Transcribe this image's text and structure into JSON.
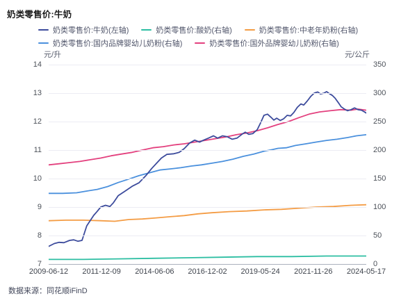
{
  "title": "奶类零售价:牛奶",
  "footer": {
    "source": "数据来源：同花顺iFinD"
  },
  "chart_data": {
    "type": "line",
    "title": "奶类零售价:牛奶",
    "grid": "horizontal-only",
    "legend_position": "top",
    "left_axis": {
      "unit": "元/升",
      "min": 7,
      "max": 14,
      "ticks": [
        14,
        13,
        12,
        11,
        10,
        9,
        8,
        7
      ]
    },
    "right_axis": {
      "unit": "元/公斤",
      "min": 0,
      "max": 350,
      "ticks": [
        350,
        300,
        250,
        200,
        150,
        100,
        50,
        0
      ]
    },
    "x_ticklabels": [
      "2009-06-12",
      "2011-12-09",
      "2014-06-06",
      "2016-12-02",
      "2019-05-24",
      "2021-11-26",
      "2024-05-17"
    ],
    "series": [
      {
        "name": "奶类零售价:牛奶(左轴)",
        "axis": "left",
        "color": "#3C4B9C",
        "points": [
          [
            0.0,
            7.62
          ],
          [
            0.018,
            7.72
          ],
          [
            0.033,
            7.76
          ],
          [
            0.048,
            7.75
          ],
          [
            0.066,
            7.83
          ],
          [
            0.079,
            7.85
          ],
          [
            0.092,
            7.8
          ],
          [
            0.105,
            7.83
          ],
          [
            0.12,
            8.34
          ],
          [
            0.142,
            8.71
          ],
          [
            0.153,
            8.85
          ],
          [
            0.164,
            9.0
          ],
          [
            0.179,
            9.06
          ],
          [
            0.193,
            9.02
          ],
          [
            0.204,
            9.15
          ],
          [
            0.219,
            9.4
          ],
          [
            0.241,
            9.56
          ],
          [
            0.263,
            9.73
          ],
          [
            0.284,
            9.85
          ],
          [
            0.306,
            10.1
          ],
          [
            0.324,
            10.35
          ],
          [
            0.341,
            10.55
          ],
          [
            0.355,
            10.72
          ],
          [
            0.372,
            10.85
          ],
          [
            0.394,
            10.87
          ],
          [
            0.411,
            10.92
          ],
          [
            0.427,
            11.05
          ],
          [
            0.444,
            11.25
          ],
          [
            0.46,
            11.35
          ],
          [
            0.475,
            11.28
          ],
          [
            0.488,
            11.35
          ],
          [
            0.503,
            11.42
          ],
          [
            0.519,
            11.5
          ],
          [
            0.532,
            11.42
          ],
          [
            0.547,
            11.5
          ],
          [
            0.562,
            11.47
          ],
          [
            0.578,
            11.38
          ],
          [
            0.593,
            11.42
          ],
          [
            0.608,
            11.55
          ],
          [
            0.619,
            11.63
          ],
          [
            0.63,
            11.55
          ],
          [
            0.643,
            11.58
          ],
          [
            0.657,
            11.72
          ],
          [
            0.667,
            11.95
          ],
          [
            0.678,
            12.22
          ],
          [
            0.689,
            12.26
          ],
          [
            0.7,
            12.15
          ],
          [
            0.709,
            12.05
          ],
          [
            0.718,
            12.12
          ],
          [
            0.729,
            12.04
          ],
          [
            0.74,
            12.1
          ],
          [
            0.751,
            12.22
          ],
          [
            0.762,
            12.2
          ],
          [
            0.772,
            12.32
          ],
          [
            0.783,
            12.5
          ],
          [
            0.794,
            12.62
          ],
          [
            0.803,
            12.58
          ],
          [
            0.814,
            12.72
          ],
          [
            0.825,
            12.88
          ],
          [
            0.836,
            13.0
          ],
          [
            0.847,
            13.04
          ],
          [
            0.856,
            12.97
          ],
          [
            0.867,
            13.0
          ],
          [
            0.875,
            13.05
          ],
          [
            0.884,
            12.98
          ],
          [
            0.893,
            12.92
          ],
          [
            0.902,
            12.82
          ],
          [
            0.913,
            12.65
          ],
          [
            0.921,
            12.52
          ],
          [
            0.93,
            12.45
          ],
          [
            0.941,
            12.38
          ],
          [
            0.952,
            12.42
          ],
          [
            0.963,
            12.48
          ],
          [
            0.974,
            12.42
          ],
          [
            0.985,
            12.4
          ],
          [
            0.993,
            12.35
          ],
          [
            1.0,
            12.3
          ]
        ]
      },
      {
        "name": "奶类零售价:酸奶(右轴)",
        "axis": "right",
        "color": "#2CBEA2",
        "points": [
          [
            0.0,
            8
          ],
          [
            0.109,
            8
          ],
          [
            0.219,
            9
          ],
          [
            0.328,
            10
          ],
          [
            0.438,
            11
          ],
          [
            0.547,
            12
          ],
          [
            0.657,
            13
          ],
          [
            0.766,
            13
          ],
          [
            0.875,
            14
          ],
          [
            1.0,
            14
          ]
        ]
      },
      {
        "name": "奶类零售价:中老年奶粉(右轴)",
        "axis": "right",
        "color": "#F49C44",
        "points": [
          [
            0.0,
            76
          ],
          [
            0.055,
            77
          ],
          [
            0.109,
            77
          ],
          [
            0.164,
            76
          ],
          [
            0.208,
            75
          ],
          [
            0.252,
            78
          ],
          [
            0.295,
            79
          ],
          [
            0.339,
            81
          ],
          [
            0.383,
            83
          ],
          [
            0.427,
            85
          ],
          [
            0.47,
            88
          ],
          [
            0.514,
            90
          ],
          [
            0.569,
            92
          ],
          [
            0.624,
            93
          ],
          [
            0.678,
            95
          ],
          [
            0.733,
            96
          ],
          [
            0.788,
            98
          ],
          [
            0.842,
            100
          ],
          [
            0.897,
            101
          ],
          [
            0.952,
            103
          ],
          [
            1.0,
            104
          ]
        ]
      },
      {
        "name": "奶类零售价:国内品牌婴幼儿奶粉(右轴)",
        "axis": "right",
        "color": "#4A90DD",
        "points": [
          [
            0.0,
            124
          ],
          [
            0.044,
            124
          ],
          [
            0.088,
            125
          ],
          [
            0.12,
            128
          ],
          [
            0.153,
            131
          ],
          [
            0.186,
            136
          ],
          [
            0.219,
            143
          ],
          [
            0.252,
            149
          ],
          [
            0.284,
            155
          ],
          [
            0.317,
            160
          ],
          [
            0.35,
            165
          ],
          [
            0.383,
            167
          ],
          [
            0.416,
            169
          ],
          [
            0.449,
            172
          ],
          [
            0.481,
            174
          ],
          [
            0.514,
            177
          ],
          [
            0.547,
            180
          ],
          [
            0.58,
            184
          ],
          [
            0.613,
            189
          ],
          [
            0.646,
            193
          ],
          [
            0.678,
            198
          ],
          [
            0.705,
            201
          ],
          [
            0.722,
            203
          ],
          [
            0.748,
            204
          ],
          [
            0.777,
            208
          ],
          [
            0.81,
            211
          ],
          [
            0.842,
            214
          ],
          [
            0.875,
            217
          ],
          [
            0.908,
            219
          ],
          [
            0.941,
            222
          ],
          [
            0.969,
            225
          ],
          [
            1.0,
            227
          ]
        ]
      },
      {
        "name": "奶类零售价:国外品牌婴幼儿奶粉(右轴)",
        "axis": "right",
        "color": "#E3407E",
        "points": [
          [
            0.0,
            174
          ],
          [
            0.033,
            176
          ],
          [
            0.066,
            178
          ],
          [
            0.098,
            180
          ],
          [
            0.131,
            183
          ],
          [
            0.164,
            186
          ],
          [
            0.197,
            190
          ],
          [
            0.23,
            193
          ],
          [
            0.263,
            196
          ],
          [
            0.295,
            200
          ],
          [
            0.328,
            204
          ],
          [
            0.361,
            206
          ],
          [
            0.394,
            209
          ],
          [
            0.427,
            211
          ],
          [
            0.46,
            214
          ],
          [
            0.492,
            217
          ],
          [
            0.525,
            220
          ],
          [
            0.558,
            223
          ],
          [
            0.591,
            227
          ],
          [
            0.624,
            230
          ],
          [
            0.657,
            234
          ],
          [
            0.689,
            239
          ],
          [
            0.722,
            245
          ],
          [
            0.755,
            250
          ],
          [
            0.788,
            257
          ],
          [
            0.82,
            263
          ],
          [
            0.853,
            267
          ],
          [
            0.886,
            269
          ],
          [
            0.919,
            271
          ],
          [
            0.952,
            270
          ],
          [
            0.974,
            272
          ],
          [
            1.0,
            270
          ]
        ]
      }
    ]
  }
}
